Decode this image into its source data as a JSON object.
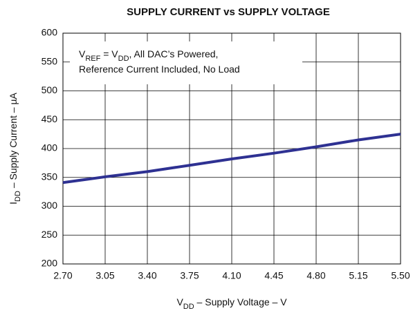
{
  "chart_data": {
    "type": "line",
    "title": "SUPPLY CURRENT vs SUPPLY VOLTAGE",
    "x_label": [
      {
        "text": "V",
        "sub": false
      },
      {
        "text": "DD",
        "sub": true
      },
      {
        "text": " – Supply Voltage – V",
        "sub": false
      }
    ],
    "y_label": [
      {
        "text": "I",
        "sub": false
      },
      {
        "text": "DD",
        "sub": true
      },
      {
        "text": " – Supply Current – µA",
        "sub": false
      }
    ],
    "annotation": [
      [
        {
          "text": "V",
          "sub": false
        },
        {
          "text": "REF",
          "sub": true
        },
        {
          "text": " = V",
          "sub": false
        },
        {
          "text": "DD",
          "sub": true
        },
        {
          "text": ", All DAC’s Powered,",
          "sub": false
        }
      ],
      [
        {
          "text": "Reference Current Included, No Load",
          "sub": false
        }
      ]
    ],
    "x": [
      2.7,
      3.05,
      3.4,
      3.75,
      4.1,
      4.45,
      4.8,
      5.15,
      5.5
    ],
    "series": [
      {
        "name": "IDD",
        "color": "#2e3192",
        "values": [
          341,
          351,
          360,
          371,
          382,
          392,
          403,
          415,
          425
        ]
      }
    ],
    "xlim": [
      2.7,
      5.5
    ],
    "xticks": [
      {
        "value": 2.7,
        "label": "2.70"
      },
      {
        "value": 3.05,
        "label": "3.05"
      },
      {
        "value": 3.4,
        "label": "3.40"
      },
      {
        "value": 3.75,
        "label": "3.75"
      },
      {
        "value": 4.1,
        "label": "4.10"
      },
      {
        "value": 4.45,
        "label": "4.45"
      },
      {
        "value": 4.8,
        "label": "4.80"
      },
      {
        "value": 5.15,
        "label": "5.15"
      },
      {
        "value": 5.5,
        "label": "5.50"
      }
    ],
    "ylim": [
      200,
      600
    ],
    "yticks": [
      200,
      250,
      300,
      350,
      400,
      450,
      500,
      550,
      600
    ],
    "grid": true
  }
}
